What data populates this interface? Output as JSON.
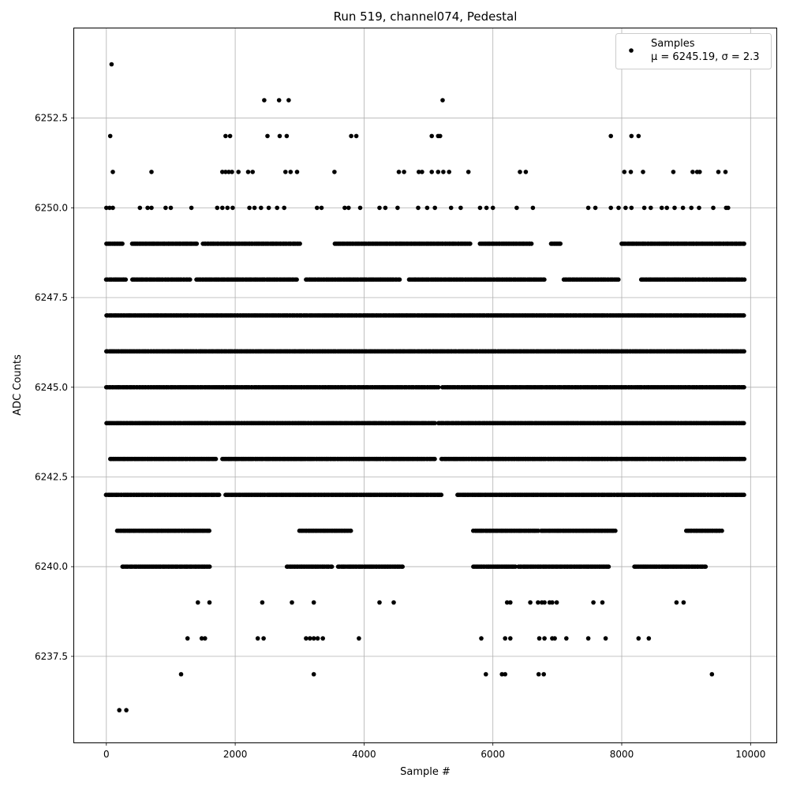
{
  "chart_data": {
    "type": "scatter",
    "title": "Run 519, channel074, Pedestal",
    "xlabel": "Sample #",
    "ylabel": "ADC Counts",
    "xlim": [
      -500,
      10400
    ],
    "ylim": [
      6235.1,
      6255.0
    ],
    "x_ticks": [
      0,
      2000,
      4000,
      6000,
      8000,
      10000
    ],
    "x_tick_labels": [
      "0",
      "2000",
      "4000",
      "6000",
      "8000",
      "10000"
    ],
    "y_ticks": [
      6237.5,
      6240.0,
      6242.5,
      6245.0,
      6247.5,
      6250.0,
      6252.5
    ],
    "y_tick_labels": [
      "6237.5",
      "6240.0",
      "6242.5",
      "6245.0",
      "6247.5",
      "6250.0",
      "6252.5"
    ],
    "grid": true,
    "legend": {
      "placement": "top-right",
      "entry_label": "Samples",
      "stats_label": "μ = 6245.19, σ = 2.3"
    },
    "marker_color": "#000000",
    "series": [
      {
        "name": "Samples",
        "type": "level-scatter",
        "level_ranges": [
          {
            "y": 6244,
            "ranges": [
              [
                0,
                5100
              ],
              [
                5150,
                9900
              ]
            ]
          },
          {
            "y": 6245,
            "ranges": [
              [
                0,
                5150
              ],
              [
                5220,
                9900
              ]
            ]
          },
          {
            "y": 6246,
            "ranges": [
              [
                0,
                9900
              ]
            ]
          },
          {
            "y": 6247,
            "ranges": [
              [
                0,
                9900
              ]
            ]
          },
          {
            "y": 6243,
            "ranges": [
              [
                60,
                1700
              ],
              [
                1800,
                5100
              ],
              [
                5200,
                9900
              ]
            ]
          },
          {
            "y": 6242,
            "ranges": [
              [
                0,
                1750
              ],
              [
                1850,
                5200
              ],
              [
                5450,
                9900
              ]
            ]
          },
          {
            "y": 6248,
            "ranges": [
              [
                0,
                300
              ],
              [
                400,
                1300
              ],
              [
                1400,
                2950
              ],
              [
                3100,
                4550
              ],
              [
                4700,
                6800
              ],
              [
                7100,
                7950
              ],
              [
                8300,
                9900
              ]
            ]
          },
          {
            "y": 6249,
            "ranges": [
              [
                0,
                250
              ],
              [
                400,
                1400
              ],
              [
                1500,
                3000
              ],
              [
                3550,
                5650
              ],
              [
                5800,
                6600
              ],
              [
                6900,
                7050
              ],
              [
                8000,
                9900
              ]
            ]
          },
          {
            "y": 6241,
            "ranges": [
              [
                170,
                1600
              ],
              [
                3000,
                3800
              ],
              [
                5700,
                6700
              ],
              [
                6750,
                7900
              ],
              [
                9000,
                9550
              ]
            ]
          },
          {
            "y": 6240,
            "ranges": [
              [
                250,
                1600
              ],
              [
                2800,
                3500
              ],
              [
                3600,
                4600
              ],
              [
                5700,
                6350
              ],
              [
                6400,
                7800
              ],
              [
                8200,
                9300
              ]
            ]
          }
        ],
        "points": [
          [
            80,
            6254
          ],
          [
            60,
            6252
          ],
          [
            2450,
            6253
          ],
          [
            2680,
            6253
          ],
          [
            2830,
            6253
          ],
          [
            5220,
            6253
          ],
          [
            1850,
            6252
          ],
          [
            1920,
            6252
          ],
          [
            2500,
            6252
          ],
          [
            2690,
            6252
          ],
          [
            2800,
            6252
          ],
          [
            3800,
            6252
          ],
          [
            3880,
            6252
          ],
          [
            5050,
            6252
          ],
          [
            5150,
            6252
          ],
          [
            5180,
            6252
          ],
          [
            7830,
            6252
          ],
          [
            8150,
            6252
          ],
          [
            8260,
            6252
          ],
          [
            100,
            6251
          ],
          [
            700,
            6251
          ],
          [
            1800,
            6251
          ],
          [
            1850,
            6251
          ],
          [
            1900,
            6251
          ],
          [
            1950,
            6251
          ],
          [
            2050,
            6251
          ],
          [
            2200,
            6251
          ],
          [
            2270,
            6251
          ],
          [
            2780,
            6251
          ],
          [
            2860,
            6251
          ],
          [
            2960,
            6251
          ],
          [
            3540,
            6251
          ],
          [
            4540,
            6251
          ],
          [
            4620,
            6251
          ],
          [
            4850,
            6251
          ],
          [
            4900,
            6251
          ],
          [
            5050,
            6251
          ],
          [
            5150,
            6251
          ],
          [
            5230,
            6251
          ],
          [
            5320,
            6251
          ],
          [
            5620,
            6251
          ],
          [
            6420,
            6251
          ],
          [
            6510,
            6251
          ],
          [
            8040,
            6251
          ],
          [
            8140,
            6251
          ],
          [
            8330,
            6251
          ],
          [
            8800,
            6251
          ],
          [
            9100,
            6251
          ],
          [
            9170,
            6251
          ],
          [
            9210,
            6251
          ],
          [
            9500,
            6251
          ],
          [
            9610,
            6251
          ],
          [
            0,
            6250
          ],
          [
            50,
            6250
          ],
          [
            100,
            6250
          ],
          [
            520,
            6250
          ],
          [
            640,
            6250
          ],
          [
            700,
            6250
          ],
          [
            920,
            6250
          ],
          [
            1000,
            6250
          ],
          [
            1320,
            6250
          ],
          [
            1720,
            6250
          ],
          [
            1800,
            6250
          ],
          [
            1880,
            6250
          ],
          [
            1960,
            6250
          ],
          [
            2220,
            6250
          ],
          [
            2300,
            6250
          ],
          [
            2400,
            6250
          ],
          [
            2520,
            6250
          ],
          [
            2650,
            6250
          ],
          [
            2760,
            6250
          ],
          [
            3270,
            6250
          ],
          [
            3340,
            6250
          ],
          [
            3700,
            6250
          ],
          [
            3760,
            6250
          ],
          [
            3940,
            6250
          ],
          [
            4240,
            6250
          ],
          [
            4330,
            6250
          ],
          [
            4520,
            6250
          ],
          [
            4840,
            6250
          ],
          [
            4980,
            6250
          ],
          [
            5100,
            6250
          ],
          [
            5350,
            6250
          ],
          [
            5500,
            6250
          ],
          [
            5800,
            6250
          ],
          [
            5900,
            6250
          ],
          [
            6000,
            6250
          ],
          [
            6370,
            6250
          ],
          [
            6620,
            6250
          ],
          [
            7480,
            6250
          ],
          [
            7590,
            6250
          ],
          [
            7830,
            6250
          ],
          [
            7950,
            6250
          ],
          [
            8060,
            6250
          ],
          [
            8150,
            6250
          ],
          [
            8350,
            6250
          ],
          [
            8450,
            6250
          ],
          [
            8620,
            6250
          ],
          [
            8700,
            6250
          ],
          [
            8820,
            6250
          ],
          [
            8950,
            6250
          ],
          [
            9080,
            6250
          ],
          [
            9200,
            6250
          ],
          [
            9420,
            6250
          ],
          [
            9620,
            6250
          ],
          [
            9650,
            6250
          ],
          [
            200,
            6236
          ],
          [
            310,
            6236
          ],
          [
            1160,
            6237
          ],
          [
            3220,
            6237
          ],
          [
            5890,
            6237
          ],
          [
            6140,
            6237
          ],
          [
            6190,
            6237
          ],
          [
            6710,
            6237
          ],
          [
            6790,
            6237
          ],
          [
            9400,
            6237
          ],
          [
            1260,
            6238
          ],
          [
            1480,
            6238
          ],
          [
            1530,
            6238
          ],
          [
            2350,
            6238
          ],
          [
            2440,
            6238
          ],
          [
            3100,
            6238
          ],
          [
            3160,
            6238
          ],
          [
            3220,
            6238
          ],
          [
            3280,
            6238
          ],
          [
            3360,
            6238
          ],
          [
            3920,
            6238
          ],
          [
            5820,
            6238
          ],
          [
            6190,
            6238
          ],
          [
            6270,
            6238
          ],
          [
            6720,
            6238
          ],
          [
            6800,
            6238
          ],
          [
            6920,
            6238
          ],
          [
            6960,
            6238
          ],
          [
            7140,
            6238
          ],
          [
            7480,
            6238
          ],
          [
            7750,
            6238
          ],
          [
            8260,
            6238
          ],
          [
            8420,
            6238
          ],
          [
            1420,
            6239
          ],
          [
            1600,
            6239
          ],
          [
            2420,
            6239
          ],
          [
            2880,
            6239
          ],
          [
            3220,
            6239
          ],
          [
            4240,
            6239
          ],
          [
            4460,
            6239
          ],
          [
            6220,
            6239
          ],
          [
            6270,
            6239
          ],
          [
            6580,
            6239
          ],
          [
            6700,
            6239
          ],
          [
            6760,
            6239
          ],
          [
            6800,
            6239
          ],
          [
            6880,
            6239
          ],
          [
            6920,
            6239
          ],
          [
            6990,
            6239
          ],
          [
            7560,
            6239
          ],
          [
            7700,
            6239
          ],
          [
            8850,
            6239
          ],
          [
            8960,
            6239
          ]
        ]
      }
    ]
  }
}
